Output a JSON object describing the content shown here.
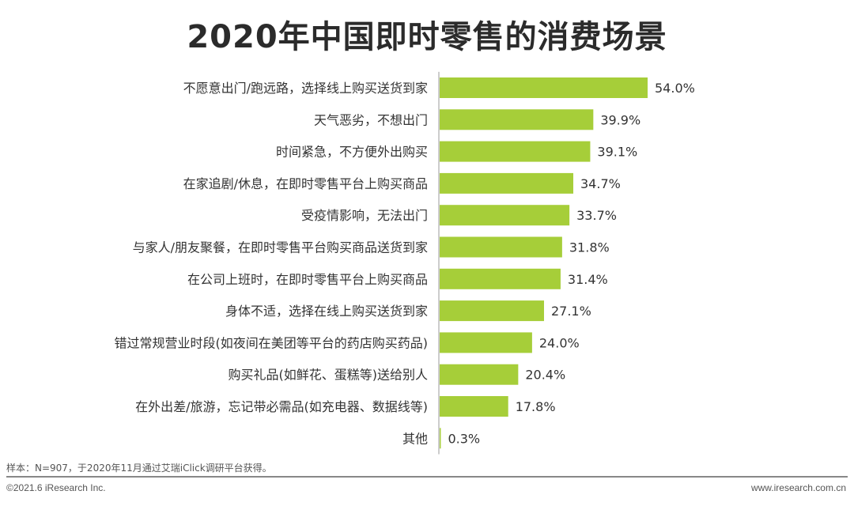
{
  "chart_data": {
    "type": "bar",
    "orientation": "horizontal",
    "title": "2020年中国即时零售的消费场景",
    "categories": [
      "不愿意出门/跑远路，选择线上购买送货到家",
      "天气恶劣，不想出门",
      "时间紧急，不方便外出购买",
      "在家追剧/休息，在即时零售平台上购买商品",
      "受疫情影响，无法出门",
      "与家人/朋友聚餐，在即时零售平台购买商品送货到家",
      "在公司上班时，在即时零售平台上购买商品",
      "身体不适，选择在线上购买送货到家",
      "错过常规营业时段(如夜间在美团等平台的药店购买药品)",
      "购买礼品(如鲜花、蛋糕等)送给别人",
      "在外出差/旅游，忘记带必需品(如充电器、数据线等)",
      "其他"
    ],
    "values": [
      54.0,
      39.9,
      39.1,
      34.7,
      33.7,
      31.8,
      31.4,
      27.1,
      24.0,
      20.4,
      17.8,
      0.3
    ],
    "value_labels": [
      "54.0%",
      "39.9%",
      "39.1%",
      "34.7%",
      "33.7%",
      "31.8%",
      "31.4%",
      "27.1%",
      "24.0%",
      "20.4%",
      "17.8%",
      "0.3%"
    ],
    "unit": "%",
    "xlim": [
      0,
      60
    ],
    "bar_color": "#a6ce39",
    "grid": false,
    "legend": "none"
  },
  "footer": {
    "note": "样本：N=907，于2020年11月通过艾瑞iClick调研平台获得。",
    "copyright": "©2021.6 iResearch Inc.",
    "website": "www.iresearch.com.cn"
  }
}
